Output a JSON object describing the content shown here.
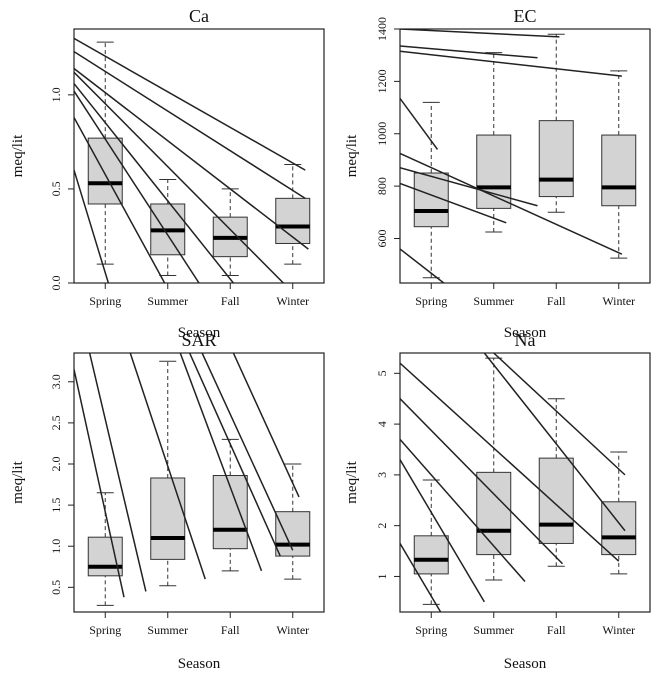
{
  "chart_data": [
    {
      "type": "box",
      "title": "Ca",
      "xlabel": "Season",
      "ylabel": "meq/lit",
      "categories": [
        "Spring",
        "Summer",
        "Fall",
        "Winter"
      ],
      "ylim": [
        0,
        1.35
      ],
      "yticks": [
        0.0,
        0.5,
        1.0
      ],
      "ytick_labels": [
        "0.0",
        "0.5",
        "1.0"
      ],
      "boxes": [
        {
          "min": 0.1,
          "q1": 0.42,
          "median": 0.53,
          "q3": 0.77,
          "max": 1.28
        },
        {
          "min": 0.04,
          "q1": 0.15,
          "median": 0.28,
          "q3": 0.42,
          "max": 0.55
        },
        {
          "min": 0.04,
          "q1": 0.14,
          "median": 0.24,
          "q3": 0.35,
          "max": 0.5
        },
        {
          "min": 0.1,
          "q1": 0.21,
          "median": 0.3,
          "q3": 0.45,
          "max": 0.63
        }
      ],
      "lines": [
        [
          0.0,
          0.6,
          0.55,
          0.0
        ],
        [
          0.0,
          0.88,
          1.45,
          0.0
        ],
        [
          0.0,
          1.02,
          2.0,
          0.0
        ],
        [
          0.0,
          1.06,
          2.55,
          0.0
        ],
        [
          0.0,
          1.12,
          3.35,
          0.0
        ],
        [
          0.0,
          1.14,
          3.75,
          0.18
        ],
        [
          0.0,
          1.23,
          3.7,
          0.45
        ],
        [
          0.0,
          1.3,
          3.7,
          0.6
        ]
      ]
    },
    {
      "type": "box",
      "title": "EC",
      "xlabel": "Season",
      "ylabel": "meq/lit",
      "categories": [
        "Spring",
        "Summer",
        "Fall",
        "Winter"
      ],
      "ylim": [
        430,
        1400
      ],
      "yticks": [
        600,
        800,
        1000,
        1200,
        1400
      ],
      "ytick_labels": [
        "600",
        "800",
        "1000",
        "1200",
        "1400"
      ],
      "boxes": [
        {
          "min": 450,
          "q1": 645,
          "median": 705,
          "q3": 850,
          "max": 1120
        },
        {
          "min": 625,
          "q1": 715,
          "median": 795,
          "q3": 995,
          "max": 1310
        },
        {
          "min": 700,
          "q1": 760,
          "median": 825,
          "q3": 1050,
          "max": 1380
        },
        {
          "min": 525,
          "q1": 725,
          "median": 795,
          "q3": 995,
          "max": 1240
        }
      ],
      "lines": [
        [
          0.0,
          560,
          0.7,
          430
        ],
        [
          0.0,
          810,
          1.7,
          660
        ],
        [
          0.0,
          870,
          2.2,
          725
        ],
        [
          0.0,
          925,
          3.55,
          540
        ],
        [
          0.0,
          1135,
          0.6,
          940
        ],
        [
          0.0,
          1315,
          3.55,
          1220
        ],
        [
          0.0,
          1335,
          2.2,
          1290
        ],
        [
          0.0,
          1400,
          2.55,
          1370
        ]
      ]
    },
    {
      "type": "box",
      "title": "SAR",
      "xlabel": "Season",
      "ylabel": "meq/lit",
      "categories": [
        "Spring",
        "Summer",
        "Fall",
        "Winter"
      ],
      "ylim": [
        0.2,
        3.35
      ],
      "yticks": [
        0.5,
        1.0,
        1.5,
        2.0,
        2.5,
        3.0
      ],
      "ytick_labels": [
        "0.5",
        "1.0",
        "1.5",
        "2.0",
        "2.5",
        "3.0"
      ],
      "boxes": [
        {
          "min": 0.28,
          "q1": 0.64,
          "median": 0.75,
          "q3": 1.11,
          "max": 1.65
        },
        {
          "min": 0.52,
          "q1": 0.84,
          "median": 1.1,
          "q3": 1.83,
          "max": 3.25
        },
        {
          "min": 0.7,
          "q1": 0.97,
          "median": 1.2,
          "q3": 1.86,
          "max": 2.3
        },
        {
          "min": 0.6,
          "q1": 0.88,
          "median": 1.02,
          "q3": 1.42,
          "max": 2.0
        }
      ],
      "lines": [
        [
          0.0,
          3.15,
          0.8,
          0.38
        ],
        [
          0.25,
          3.35,
          1.15,
          0.45
        ],
        [
          0.9,
          3.35,
          2.1,
          0.6
        ],
        [
          1.7,
          3.35,
          3.0,
          0.7
        ],
        [
          1.85,
          3.35,
          3.3,
          0.88
        ],
        [
          2.05,
          3.35,
          3.5,
          0.95
        ],
        [
          2.55,
          3.35,
          3.6,
          1.6
        ]
      ]
    },
    {
      "type": "box",
      "title": "Na",
      "xlabel": "Season",
      "ylabel": "meq/lit",
      "categories": [
        "Spring",
        "Summer",
        "Fall",
        "Winter"
      ],
      "ylim": [
        0.3,
        5.4
      ],
      "yticks": [
        1,
        2,
        3,
        4,
        5
      ],
      "ytick_labels": [
        "1",
        "2",
        "3",
        "4",
        "5"
      ],
      "boxes": [
        {
          "min": 0.45,
          "q1": 1.05,
          "median": 1.33,
          "q3": 1.8,
          "max": 2.9
        },
        {
          "min": 0.93,
          "q1": 1.43,
          "median": 1.9,
          "q3": 3.05,
          "max": 5.3
        },
        {
          "min": 1.2,
          "q1": 1.65,
          "median": 2.02,
          "q3": 3.33,
          "max": 4.5
        },
        {
          "min": 1.05,
          "q1": 1.43,
          "median": 1.77,
          "q3": 2.47,
          "max": 3.45
        }
      ],
      "lines": [
        [
          0.0,
          1.65,
          0.65,
          0.3
        ],
        [
          0.0,
          3.3,
          1.35,
          0.5
        ],
        [
          0.0,
          3.7,
          2.0,
          0.9
        ],
        [
          0.0,
          4.5,
          2.6,
          1.25
        ],
        [
          0.0,
          5.2,
          3.5,
          1.3
        ],
        [
          1.35,
          5.4,
          3.6,
          1.9
        ],
        [
          1.5,
          5.4,
          3.6,
          3.0
        ]
      ]
    }
  ]
}
